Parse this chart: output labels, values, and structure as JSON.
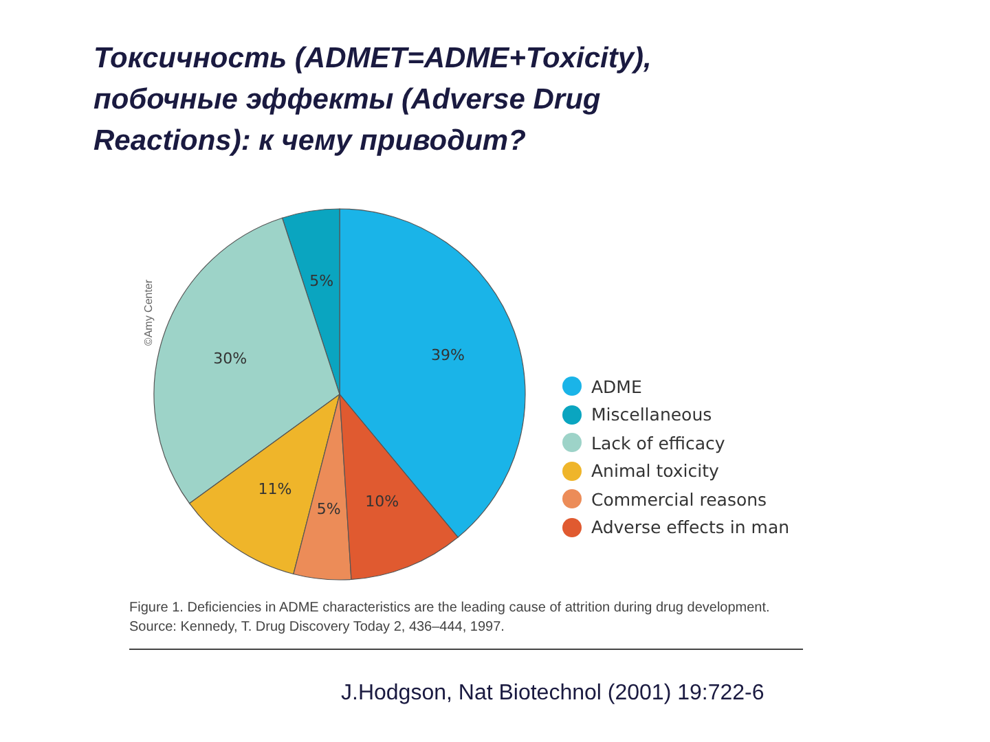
{
  "chart_data": {
    "type": "pie",
    "title": "Токсичность (ADMET=ADME+Toxicity), побочные эффекты (Adverse Drug Reactions): к чему приводит?",
    "categories": [
      "ADME",
      "Miscellaneous",
      "Lack of efficacy",
      "Animal toxicity",
      "Commercial reasons",
      "Adverse effects in man"
    ],
    "values": [
      39,
      5,
      30,
      11,
      5,
      10
    ],
    "value_labels": [
      "39%",
      "5%",
      "30%",
      "11%",
      "5%",
      "10%"
    ],
    "colors": [
      "#1ab4e8",
      "#0aa5c0",
      "#9dd3c8",
      "#efb52a",
      "#ec8c58",
      "#e05a30"
    ],
    "legend": "right",
    "annotations": [
      "Figure 1. Deficiencies in ADME characteristics are the leading cause of attrition during drug development. Source: Kennedy, T. Drug Discovery Today 2, 436–444, 1997.",
      "J.Hodgson, Nat Biotechnol (2001) 19:722-6",
      "©Amy Center"
    ]
  }
}
